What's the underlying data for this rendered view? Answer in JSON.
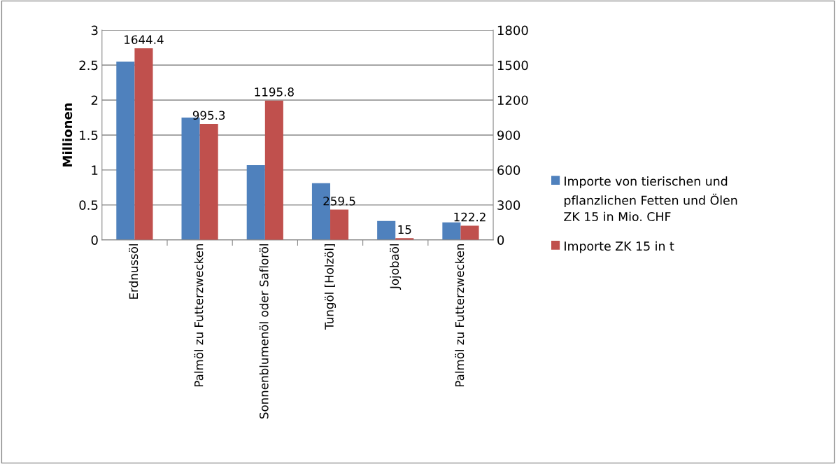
{
  "chart_data": {
    "type": "bar",
    "ylabel": "Millionen",
    "categories": [
      "Erdnussöl",
      "Palmöl zu Futterzwecken",
      "Sonnenblumenöl oder Safloröl",
      "Tungöl [Holzöl]",
      "Jojobaöl",
      "Palmöl zu Futterzwecken"
    ],
    "series": [
      {
        "name": "Importe von tierischen und pflanzlichen Fetten und Ölen ZK 15 in Mio. CHF",
        "color": "#4f81bd",
        "values": [
          2.55,
          1.75,
          1.07,
          0.81,
          0.27,
          0.25
        ]
      },
      {
        "name": "Importe ZK 15 in t",
        "color": "#c0504d",
        "axis": "y2",
        "values": [
          1644.4,
          995.3,
          1195.8,
          259.5,
          15,
          122.2
        ],
        "value_labels": [
          "1644.4",
          "995.3",
          "1195.8",
          "259.5",
          "15",
          "122.2"
        ]
      }
    ],
    "ylim": [
      0,
      3
    ],
    "yticks": [
      0,
      0.5,
      1,
      1.5,
      2,
      2.5,
      3
    ],
    "y2lim": [
      0,
      1800
    ],
    "y2ticks": [
      0,
      300,
      600,
      900,
      1200,
      1500,
      1800
    ],
    "grid": "y",
    "legend": "right"
  }
}
